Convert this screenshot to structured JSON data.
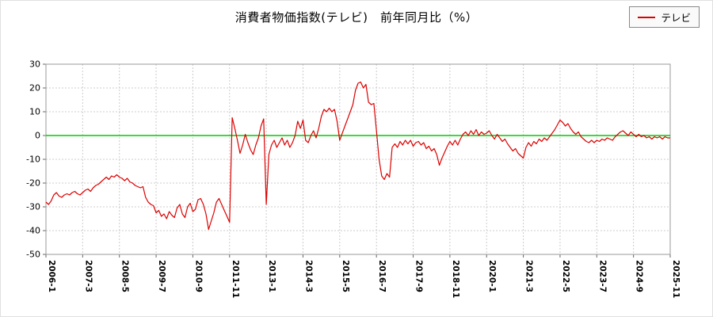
{
  "title": "消費者物価指数(テレビ)　前年同月比（%）",
  "legend": {
    "label": "テレビ",
    "color": "#dd0000"
  },
  "chart_data": {
    "type": "line",
    "title": "消費者物価指数(テレビ)　前年同月比（%）",
    "ylabel": "",
    "xlabel": "",
    "ylim": [
      -50,
      30
    ],
    "yticks": [
      30,
      20,
      10,
      0,
      -10,
      -20,
      -30,
      -40,
      -50
    ],
    "grid": true,
    "grid_color": "#cccccc",
    "zero_line_color": "#00cc00",
    "plot_border_color": "#999999",
    "legend_position": "top-right",
    "xtick_every": 14,
    "xtick_labels": [
      "2006-1",
      "2007-3",
      "2008-5",
      "2009-7",
      "2010-9",
      "2011-11",
      "2013-1",
      "2014-3",
      "2015-5",
      "2016-7",
      "2017-9",
      "2018-11",
      "2020-1",
      "2021-3",
      "2022-5",
      "2023-7",
      "2024-9",
      "2025-11"
    ],
    "x_start": "2006-1",
    "x_end": "2025-11",
    "x_unit": "month",
    "series": [
      {
        "name": "テレビ",
        "color": "#dd0000",
        "values": [
          -28,
          -29,
          -27.5,
          -25,
          -24,
          -25.5,
          -26,
          -25,
          -24.5,
          -25,
          -24,
          -23.5,
          -24.5,
          -25,
          -24,
          -23,
          -22.5,
          -23.5,
          -22,
          -21,
          -20.5,
          -19.5,
          -18.5,
          -17.5,
          -18.5,
          -17,
          -17.5,
          -16.5,
          -17.5,
          -18,
          -19,
          -18,
          -19.5,
          -20,
          -21,
          -21.5,
          -22,
          -21.5,
          -26,
          -28,
          -29,
          -29.5,
          -32.5,
          -31.5,
          -34,
          -33,
          -35,
          -32,
          -33.5,
          -34.5,
          -30.5,
          -29,
          -33,
          -34.5,
          -30,
          -28.5,
          -32,
          -31,
          -27,
          -26.5,
          -29,
          -33,
          -39.5,
          -36,
          -32.5,
          -28,
          -26.5,
          -29,
          -31.5,
          -34,
          -36.5,
          7.5,
          3,
          -2,
          -7.5,
          -4,
          0.5,
          -3,
          -6,
          -8,
          -4,
          -1,
          4,
          7,
          -29,
          -8,
          -4,
          -2,
          -5,
          -3,
          -1,
          -4,
          -2,
          -5,
          -3,
          0,
          6,
          3,
          6.5,
          -2,
          -3,
          0,
          2,
          -1,
          3,
          8,
          11,
          10,
          11.5,
          10,
          11,
          6,
          -2,
          1,
          4,
          7,
          10,
          13,
          19,
          22,
          22.5,
          20,
          21.5,
          14,
          13,
          13.5,
          2,
          -10,
          -17,
          -18.5,
          -16,
          -17.5,
          -5,
          -3.5,
          -5,
          -2.5,
          -4,
          -2,
          -3.5,
          -2,
          -4.5,
          -3,
          -2.5,
          -4,
          -3,
          -5.5,
          -4.5,
          -6.5,
          -5.5,
          -8,
          -12.5,
          -9.5,
          -7,
          -4.5,
          -2.5,
          -4,
          -2,
          -4,
          -1.5,
          0.5,
          1.5,
          0,
          2,
          0.5,
          2.5,
          0,
          1.5,
          0.5,
          1,
          2,
          0,
          -1.5,
          0.5,
          -1,
          -2.5,
          -1.5,
          -3.5,
          -5,
          -6.5,
          -5.5,
          -7.5,
          -8.5,
          -9.5,
          -5,
          -3,
          -4.5,
          -2.5,
          -3.5,
          -1.5,
          -2.5,
          -1,
          -2,
          -0.5,
          1,
          2.5,
          4.5,
          6.5,
          5.5,
          4,
          5,
          3,
          1.5,
          0.5,
          1.5,
          -0.5,
          -1.5,
          -2.5,
          -3,
          -2,
          -3,
          -2,
          -2.5,
          -1.5,
          -2,
          -1,
          -1.5,
          -2,
          -0.5,
          0.5,
          1.5,
          2,
          1,
          0,
          1.5,
          0.5,
          -0.5,
          0.5,
          -0.5,
          0,
          -1,
          -0.5,
          -1.5,
          -0.5,
          -1,
          -0.5,
          -1.5,
          -0.5,
          -1,
          -1
        ]
      }
    ]
  }
}
